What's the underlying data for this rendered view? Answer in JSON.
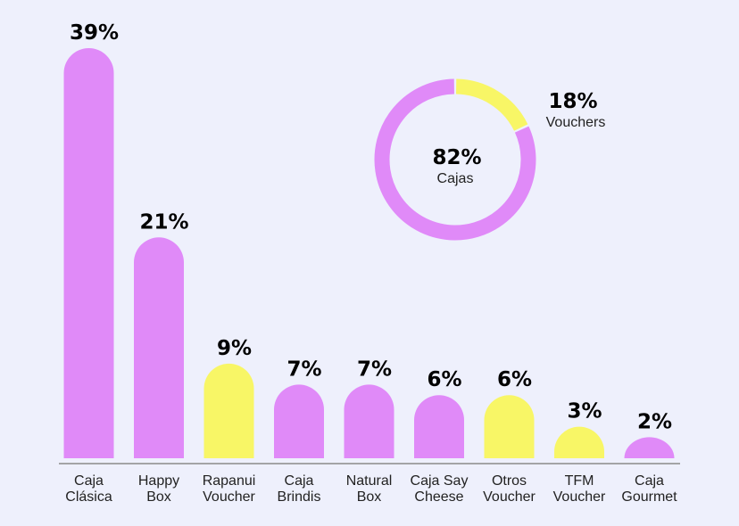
{
  "colors": {
    "background": "#eef0fc",
    "boxes": "#e08af8",
    "vouchers": "#f8f666",
    "axis": "#8a8a8a"
  },
  "chart_data": [
    {
      "type": "bar",
      "categories": [
        [
          "Caja",
          "Clásica"
        ],
        [
          "Happy",
          "Box"
        ],
        [
          "Rapanui",
          "Voucher"
        ],
        [
          "Caja",
          "Brindis"
        ],
        [
          "Natural",
          "Box"
        ],
        [
          "Caja Say",
          "Cheese"
        ],
        [
          "Otros",
          "Voucher"
        ],
        [
          "TFM",
          "Voucher"
        ],
        [
          "Caja",
          "Gourmet"
        ]
      ],
      "values": [
        39,
        21,
        9,
        7,
        7,
        6,
        6,
        3,
        2
      ],
      "value_labels": [
        "39%",
        "21%",
        "9%",
        "7%",
        "7%",
        "6%",
        "6%",
        "3%",
        "2%"
      ],
      "groups": [
        "caja",
        "caja",
        "voucher",
        "caja",
        "caja",
        "caja",
        "voucher",
        "voucher",
        "caja"
      ],
      "unit": "%",
      "ylim": [
        0,
        39
      ],
      "grid": false,
      "legend": "none"
    },
    {
      "type": "pie",
      "style": "donut",
      "slices": [
        {
          "label": "Vouchers",
          "value": 18,
          "value_label": "18%",
          "group": "voucher"
        },
        {
          "label": "Cajas",
          "value": 82,
          "value_label": "82%",
          "group": "caja"
        }
      ],
      "unit": "%"
    }
  ]
}
